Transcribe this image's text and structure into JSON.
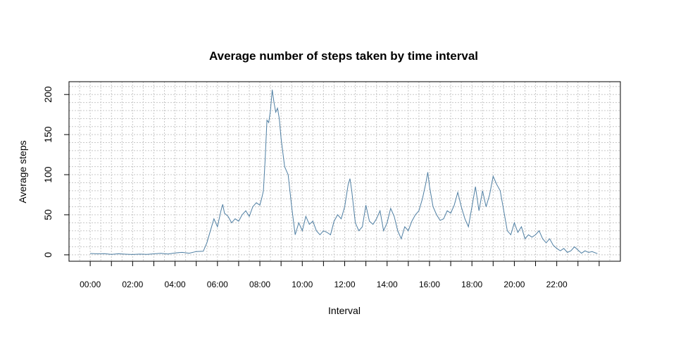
{
  "chart_data": {
    "type": "line",
    "title": "Average number of steps taken by time interval",
    "xlabel": "Interval",
    "ylabel": "Average steps",
    "x_unit": "minutes since 00:00",
    "xlim": [
      -60,
      1500
    ],
    "ylim": [
      -8,
      216
    ],
    "x_tick_labels": [
      "00:00",
      "02:00",
      "04:00",
      "06:00",
      "08:00",
      "10:00",
      "12:00",
      "14:00",
      "16:00",
      "18:00",
      "20:00",
      "22:00"
    ],
    "x_tick_values": [
      0,
      120,
      240,
      360,
      480,
      600,
      720,
      840,
      960,
      1080,
      1200,
      1320
    ],
    "x_minor_tick_values": [
      60,
      180,
      300,
      420,
      540,
      660,
      780,
      900,
      1020,
      1140,
      1260,
      1380,
      1440
    ],
    "y_tick_labels": [
      "0",
      "50",
      "100",
      "150",
      "200"
    ],
    "y_tick_values": [
      0,
      50,
      100,
      150,
      200
    ],
    "grid": true,
    "line_color": "#4f7fa3",
    "series": [
      {
        "x": [
          0,
          20,
          40,
          60,
          80,
          100,
          120,
          140,
          160,
          180,
          200,
          220,
          240,
          260,
          280,
          300,
          320,
          330,
          340,
          350,
          360,
          370,
          375,
          380,
          390,
          400,
          410,
          420,
          430,
          440,
          450,
          460,
          470,
          480,
          485,
          490,
          495,
          500,
          505,
          510,
          515,
          520,
          525,
          530,
          535,
          540,
          550,
          560,
          570,
          580,
          590,
          600,
          610,
          620,
          630,
          640,
          650,
          660,
          670,
          680,
          690,
          700,
          710,
          720,
          730,
          735,
          740,
          750,
          760,
          770,
          780,
          790,
          800,
          810,
          820,
          830,
          840,
          850,
          860,
          870,
          880,
          890,
          900,
          910,
          920,
          930,
          940,
          950,
          955,
          960,
          970,
          980,
          990,
          1000,
          1010,
          1020,
          1030,
          1040,
          1050,
          1060,
          1070,
          1080,
          1090,
          1100,
          1110,
          1120,
          1130,
          1140,
          1150,
          1160,
          1170,
          1180,
          1190,
          1200,
          1210,
          1220,
          1230,
          1240,
          1250,
          1260,
          1270,
          1280,
          1290,
          1300,
          1310,
          1320,
          1330,
          1340,
          1350,
          1360,
          1370,
          1380,
          1390,
          1400,
          1410,
          1420,
          1435
        ],
        "y": [
          1.7,
          1.2,
          1.5,
          0.5,
          1.3,
          0.8,
          0.4,
          0.9,
          0.6,
          1.2,
          1.8,
          1.0,
          2.4,
          3.1,
          2.0,
          4.1,
          4.5,
          15,
          30,
          45,
          35,
          55,
          63,
          52,
          48,
          40,
          45,
          42,
          50,
          55,
          48,
          60,
          65,
          62,
          70,
          80,
          120,
          168,
          165,
          180,
          206,
          190,
          178,
          183,
          170,
          145,
          110,
          100,
          60,
          25,
          40,
          30,
          48,
          38,
          42,
          30,
          25,
          30,
          28,
          25,
          42,
          50,
          45,
          60,
          88,
          95,
          80,
          40,
          30,
          35,
          62,
          42,
          38,
          45,
          55,
          30,
          40,
          58,
          48,
          30,
          20,
          35,
          30,
          42,
          50,
          55,
          70,
          90,
          103,
          85,
          60,
          50,
          43,
          45,
          55,
          52,
          62,
          78,
          60,
          45,
          35,
          60,
          85,
          55,
          80,
          60,
          75,
          98,
          88,
          80,
          55,
          30,
          25,
          40,
          28,
          35,
          20,
          25,
          22,
          25,
          30,
          20,
          15,
          20,
          12,
          8,
          5,
          8,
          3,
          5,
          10,
          6,
          2,
          5,
          3,
          4,
          1.5
        ]
      }
    ]
  }
}
